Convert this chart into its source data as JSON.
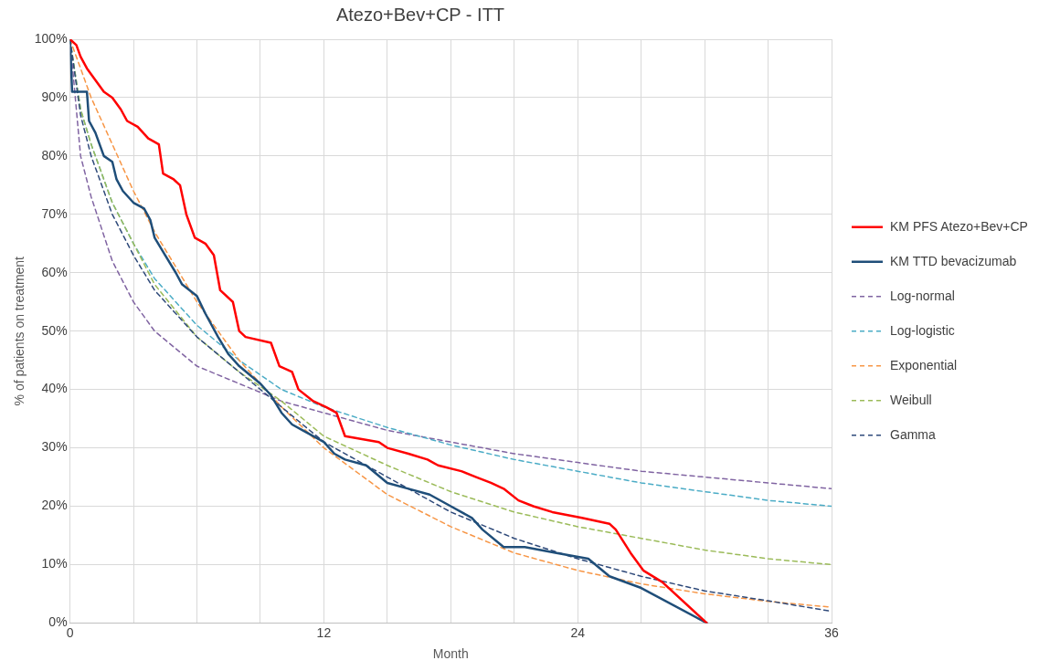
{
  "chart_data": {
    "type": "line",
    "title": "Atezo+Bev+CP - ITT",
    "xlabel": "Month",
    "ylabel": "% of patients on treatment",
    "xlim": [
      0,
      36
    ],
    "xticks": [
      0,
      {
        "value": 3,
        "label": null
      },
      {
        "value": 6,
        "label": null
      },
      {
        "value": 9,
        "label": null
      },
      12,
      {
        "value": 15,
        "label": null
      },
      {
        "value": 18,
        "label": null
      },
      {
        "value": 21,
        "label": null
      },
      24,
      {
        "value": 27,
        "label": null
      },
      {
        "value": 30,
        "label": null
      },
      {
        "value": 33,
        "label": null
      },
      36
    ],
    "ylim": [
      0,
      100
    ],
    "yticks": [
      {
        "value": 0,
        "label": "0%"
      },
      {
        "value": 10,
        "label": "10%"
      },
      {
        "value": 20,
        "label": "20%"
      },
      {
        "value": 30,
        "label": "30%"
      },
      {
        "value": 40,
        "label": "40%"
      },
      {
        "value": 50,
        "label": "50%"
      },
      {
        "value": 60,
        "label": "60%"
      },
      {
        "value": 70,
        "label": "70%"
      },
      {
        "value": 80,
        "label": "80%"
      },
      {
        "value": 90,
        "label": "90%"
      },
      {
        "value": 100,
        "label": "100%"
      }
    ],
    "grid": true,
    "legend": "right",
    "marker": "none",
    "series": [
      {
        "name": "KM PFS Atezo+Bev+CP",
        "color": "#ff0000",
        "line_style": "solid",
        "x": [
          0,
          0.3,
          0.5,
          0.8,
          1.2,
          1.6,
          2.0,
          2.4,
          2.7,
          3.2,
          3.7,
          4.2,
          4.4,
          4.9,
          5.2,
          5.5,
          5.9,
          6.4,
          6.8,
          7.1,
          7.7,
          8.0,
          8.3,
          9.5,
          9.9,
          10.5,
          10.8,
          11.5,
          12.1,
          12.6,
          13.0,
          14.6,
          15.0,
          16.0,
          16.9,
          17.4,
          18.5,
          19.2,
          19.9,
          20.5,
          21.2,
          21.9,
          22.8,
          24.2,
          25.5,
          25.8,
          26.5,
          27.1,
          28.0,
          30.1
        ],
        "values": [
          100,
          99,
          97,
          95,
          93,
          91,
          90,
          88,
          86,
          85,
          83,
          82,
          77,
          76,
          75,
          70,
          66,
          65,
          63,
          57,
          55,
          50,
          49,
          48,
          44,
          43,
          40,
          38,
          37,
          36,
          32,
          31,
          30,
          29,
          28,
          27,
          26,
          25,
          24,
          23,
          21,
          20,
          19,
          18,
          17,
          16,
          12,
          9,
          7,
          0
        ]
      },
      {
        "name": "KM TTD bevacizumab",
        "color": "#1f4e79",
        "line_style": "solid",
        "x": [
          0,
          0.1,
          0.8,
          0.9,
          1.2,
          1.6,
          2.0,
          2.2,
          2.5,
          3.0,
          3.5,
          3.8,
          4.0,
          4.5,
          5.0,
          5.3,
          6.0,
          6.4,
          7.0,
          7.5,
          8.0,
          9.0,
          9.5,
          10.0,
          10.5,
          11.0,
          12.0,
          12.5,
          13.0,
          14.0,
          15.0,
          16.0,
          17.0,
          18.0,
          19.0,
          19.5,
          20.5,
          21.5,
          23.0,
          24.5,
          25.5,
          27.0,
          30.1
        ],
        "values": [
          100,
          91,
          91,
          86,
          84,
          80,
          79,
          76,
          74,
          72,
          71,
          69,
          66,
          63,
          60,
          58,
          56,
          53,
          49,
          46,
          44,
          41,
          39,
          36,
          34,
          33,
          31,
          29,
          28,
          27,
          24,
          23,
          22,
          20,
          18,
          16,
          13,
          13,
          12,
          11,
          8,
          6,
          0
        ]
      },
      {
        "name": "Log-normal",
        "color": "#8064a2",
        "line_style": "dashed",
        "x": [
          0,
          0.5,
          1,
          2,
          3,
          4,
          6,
          8,
          10,
          12,
          15,
          18,
          21,
          24,
          27,
          30,
          33,
          36
        ],
        "values": [
          100,
          80,
          73,
          62,
          55,
          50,
          44,
          41,
          38,
          36,
          33,
          31,
          29,
          27.5,
          26,
          25,
          24,
          23
        ]
      },
      {
        "name": "Log-logistic",
        "color": "#4bacc6",
        "line_style": "dashed",
        "x": [
          0,
          0.5,
          1,
          2,
          3,
          4,
          6,
          8,
          10,
          12,
          15,
          18,
          21,
          24,
          27,
          30,
          33,
          36
        ],
        "values": [
          100,
          88,
          82,
          72,
          65,
          59,
          51,
          45,
          40,
          37,
          33.5,
          30.5,
          28,
          26,
          24,
          22.5,
          21,
          20
        ]
      },
      {
        "name": "Exponential",
        "color": "#f79646",
        "line_style": "dashed",
        "x": [
          0,
          1,
          2,
          3,
          4,
          6,
          8,
          10,
          12,
          15,
          18,
          21,
          24,
          27,
          30,
          33,
          36
        ],
        "values": [
          100,
          90,
          82,
          74,
          67,
          55,
          45,
          37,
          30,
          22,
          16.5,
          12,
          9,
          6.7,
          5,
          3.7,
          2.7
        ]
      },
      {
        "name": "Weibull",
        "color": "#9bbb59",
        "line_style": "dashed",
        "x": [
          0,
          0.5,
          1,
          2,
          3,
          4,
          6,
          8,
          10,
          12,
          15,
          18,
          21,
          24,
          27,
          30,
          33,
          36
        ],
        "values": [
          100,
          88,
          82,
          72,
          65,
          58,
          49,
          43,
          38,
          32,
          27,
          22.5,
          19,
          16.5,
          14.5,
          12.5,
          11,
          10
        ]
      },
      {
        "name": "Gamma",
        "color": "#2f4a7a",
        "line_style": "dashed",
        "x": [
          0,
          0.5,
          1,
          2,
          3,
          4,
          6,
          8,
          10,
          12,
          15,
          18,
          21,
          24,
          27,
          30,
          33,
          36
        ],
        "values": [
          100,
          87,
          80,
          70,
          63,
          57,
          49,
          43,
          37,
          31,
          25,
          19,
          14.5,
          11,
          8,
          5.5,
          3.8,
          2
        ]
      }
    ]
  }
}
